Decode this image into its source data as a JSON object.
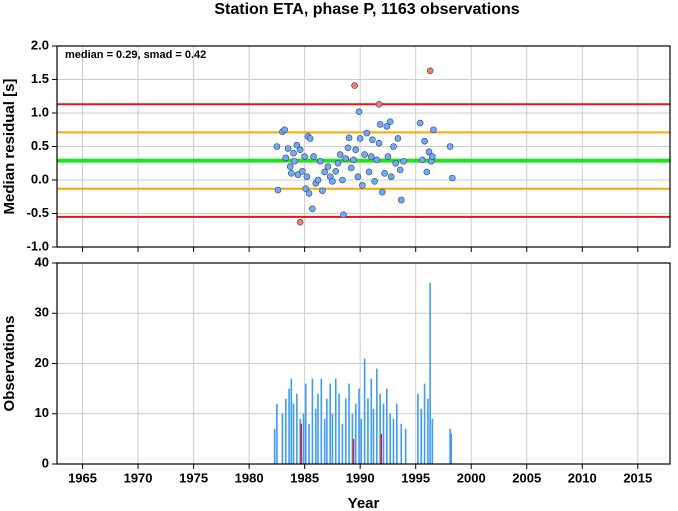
{
  "chart_data": [
    {
      "type": "scatter",
      "title": "Station ETA, phase P, 1163 observations",
      "ylabel": "Median residual [s]",
      "annotation": "median = 0.29, smad = 0.42",
      "xlim": [
        1962.7,
        2017.9
      ],
      "xticks": [
        1965,
        1970,
        1975,
        1980,
        1985,
        1990,
        1995,
        2000,
        2005,
        2010,
        2015
      ],
      "ylim": [
        -1,
        2
      ],
      "yticks": [
        {
          "value": -1,
          "label": "-1.0"
        },
        -0.5,
        {
          "value": 0,
          "label": "0.0"
        },
        0.5,
        {
          "value": 1,
          "label": "1.0"
        },
        1.5,
        {
          "value": 2,
          "label": "2.0"
        }
      ],
      "grid": true,
      "hlines": [
        {
          "value": 0.29,
          "color": "#22e022"
        },
        {
          "value": 0.71,
          "color": "#ffa500"
        },
        {
          "value": -0.13,
          "color": "#ffa500"
        },
        {
          "value": 1.13,
          "color": "#ee1111"
        },
        {
          "value": -0.55,
          "color": "#ee1111"
        }
      ],
      "series": [
        {
          "color": "#6fa8ff",
          "x": [
            1982.5,
            1982.6,
            1983.0,
            1983.2,
            1983.3,
            1983.5,
            1983.7,
            1983.8,
            1984.0,
            1984.1,
            1984.3,
            1984.4,
            1984.6,
            1984.8,
            1985.0,
            1985.1,
            1985.2,
            1985.3,
            1985.4,
            1985.5,
            1985.7,
            1985.8,
            1986.0,
            1986.2,
            1986.4,
            1986.6,
            1986.8,
            1987.1,
            1987.3,
            1987.5,
            1987.8,
            1988.0,
            1988.2,
            1988.4,
            1988.5,
            1988.7,
            1988.9,
            1989.0,
            1989.2,
            1989.4,
            1989.6,
            1989.8,
            1989.9,
            1990.0,
            1990.2,
            1990.4,
            1990.6,
            1990.8,
            1991.0,
            1991.1,
            1991.3,
            1991.5,
            1991.7,
            1991.8,
            1992.0,
            1992.2,
            1992.4,
            1992.5,
            1992.7,
            1992.8,
            1993.0,
            1993.2,
            1993.4,
            1993.6,
            1993.7,
            1993.9,
            1995.4,
            1995.6,
            1995.8,
            1996.0,
            1996.2,
            1996.4,
            1996.5,
            1996.6,
            1998.1,
            1998.3
          ],
          "values": [
            0.5,
            -0.15,
            0.72,
            0.75,
            0.33,
            0.47,
            0.2,
            0.1,
            0.4,
            0.28,
            0.52,
            0.08,
            0.45,
            0.13,
            0.35,
            -0.13,
            0.05,
            0.65,
            -0.2,
            0.62,
            -0.43,
            0.35,
            -0.05,
            0.0,
            0.28,
            -0.16,
            0.12,
            0.2,
            0.05,
            -0.02,
            0.13,
            0.25,
            0.38,
            0.0,
            -0.52,
            0.32,
            0.48,
            0.63,
            0.18,
            0.3,
            0.45,
            0.05,
            1.02,
            0.62,
            -0.08,
            0.38,
            0.7,
            0.12,
            0.35,
            0.6,
            -0.02,
            0.3,
            0.55,
            0.83,
            -0.18,
            0.1,
            0.8,
            0.35,
            0.87,
            0.05,
            0.5,
            0.25,
            0.62,
            0.15,
            -0.3,
            0.28,
            0.85,
            0.3,
            0.58,
            0.12,
            0.42,
            0.28,
            0.35,
            0.75,
            0.5,
            0.03
          ]
        },
        {
          "color": "#f47a6a",
          "x": [
            1984.6,
            1989.5,
            1991.7,
            1996.3
          ],
          "values": [
            -0.63,
            1.41,
            1.13,
            1.63
          ]
        }
      ]
    },
    {
      "type": "bar",
      "xlabel": "Year",
      "ylabel": "Observations",
      "xlim": [
        1962.7,
        2017.9
      ],
      "xticks": [
        1965,
        1970,
        1975,
        1980,
        1985,
        1990,
        1995,
        2000,
        2005,
        2010,
        2015
      ],
      "ylim": [
        0,
        40
      ],
      "yticks": [
        0,
        10,
        20,
        30,
        40
      ],
      "grid": true,
      "series": [
        {
          "color": "#3d9bf0",
          "x": [
            1982.3,
            1982.5,
            1983.0,
            1983.3,
            1983.6,
            1983.8,
            1984.0,
            1984.3,
            1984.6,
            1984.9,
            1985.1,
            1985.4,
            1985.7,
            1986.0,
            1986.2,
            1986.5,
            1986.8,
            1987.0,
            1987.3,
            1987.5,
            1987.8,
            1988.1,
            1988.4,
            1988.7,
            1989.0,
            1989.3,
            1989.6,
            1989.9,
            1990.1,
            1990.4,
            1990.7,
            1991.0,
            1991.2,
            1991.5,
            1991.8,
            1992.1,
            1992.4,
            1992.7,
            1993.0,
            1993.3,
            1993.7,
            1994.1,
            1995.2,
            1995.5,
            1995.8,
            1996.1,
            1996.3,
            1996.5,
            1998.1,
            1998.2
          ],
          "values": [
            7,
            12,
            10,
            13,
            15,
            17,
            12,
            14,
            9,
            10,
            16,
            8,
            17,
            11,
            14,
            17,
            9,
            13,
            16,
            10,
            17,
            14,
            8,
            13,
            16,
            10,
            12,
            15,
            9,
            21,
            13,
            17,
            11,
            19,
            14,
            12,
            15,
            10,
            9,
            12,
            8,
            7,
            14,
            11,
            16,
            13,
            36,
            9,
            7,
            6
          ]
        },
        {
          "color": "#cc2222",
          "x": [
            1984.7,
            1989.4,
            1991.9
          ],
          "values": [
            8,
            5,
            6
          ]
        }
      ]
    }
  ]
}
